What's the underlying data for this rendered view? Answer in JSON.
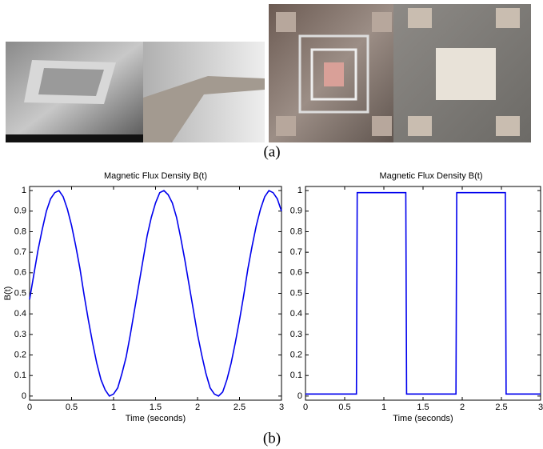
{
  "captions": {
    "a": "(a)",
    "b": "(b)"
  },
  "chart_data": [
    {
      "type": "line",
      "title": "Magnetic Flux Density B(t)",
      "xlabel": "Time (seconds)",
      "ylabel": "B(t)",
      "color": "#0000ee",
      "x": [
        0,
        0.05,
        0.1,
        0.15,
        0.2,
        0.25,
        0.3,
        0.35,
        0.4,
        0.45,
        0.5,
        0.55,
        0.6,
        0.65,
        0.7,
        0.75,
        0.8,
        0.85,
        0.9,
        0.95,
        1,
        1.05,
        1.1,
        1.15,
        1.2,
        1.25,
        1.3,
        1.35,
        1.4,
        1.45,
        1.5,
        1.55,
        1.6,
        1.65,
        1.7,
        1.75,
        1.8,
        1.85,
        1.9,
        1.95,
        2,
        2.05,
        2.1,
        2.15,
        2.2,
        2.25,
        2.3,
        2.35,
        2.4,
        2.45,
        2.5,
        2.55,
        2.6,
        2.65,
        2.7,
        2.75,
        2.8,
        2.85,
        2.9,
        2.95,
        3
      ],
      "values": [
        0.47,
        0.59,
        0.71,
        0.81,
        0.9,
        0.96,
        0.99,
        1,
        0.97,
        0.91,
        0.83,
        0.73,
        0.62,
        0.49,
        0.37,
        0.26,
        0.16,
        0.08,
        0.03,
        0,
        0.01,
        0.04,
        0.11,
        0.19,
        0.3,
        0.42,
        0.54,
        0.66,
        0.78,
        0.87,
        0.94,
        0.99,
        1,
        0.98,
        0.94,
        0.87,
        0.77,
        0.66,
        0.54,
        0.42,
        0.3,
        0.2,
        0.11,
        0.04,
        0.01,
        0,
        0.02,
        0.08,
        0.16,
        0.26,
        0.37,
        0.49,
        0.62,
        0.73,
        0.83,
        0.91,
        0.97,
        1,
        0.99,
        0.96,
        0.9
      ],
      "xlim": [
        0,
        3
      ],
      "ylim": [
        -0.02,
        1.02
      ],
      "xticks": [
        0,
        0.5,
        1,
        1.5,
        2,
        2.5,
        3
      ],
      "yticks": [
        0,
        0.1,
        0.2,
        0.3,
        0.4,
        0.5,
        0.6,
        0.7,
        0.8,
        0.9,
        1
      ]
    },
    {
      "type": "line",
      "title": "Magnetic Flux Density B(t)",
      "xlabel": "Time (seconds)",
      "color": "#0000ee",
      "x": [
        0,
        0.65,
        0.66,
        1.28,
        1.29,
        1.92,
        1.93,
        2.55,
        2.56,
        3
      ],
      "values": [
        0.01,
        0.01,
        0.99,
        0.99,
        0.01,
        0.01,
        0.99,
        0.99,
        0.01,
        0.01
      ],
      "xlim": [
        0,
        3
      ],
      "ylim": [
        -0.02,
        1.02
      ],
      "xticks": [
        0,
        0.5,
        1,
        1.5,
        2,
        2.5,
        3
      ],
      "yticks": [
        0,
        0.1,
        0.2,
        0.3,
        0.4,
        0.5,
        0.6,
        0.7,
        0.8,
        0.9,
        1
      ]
    }
  ]
}
